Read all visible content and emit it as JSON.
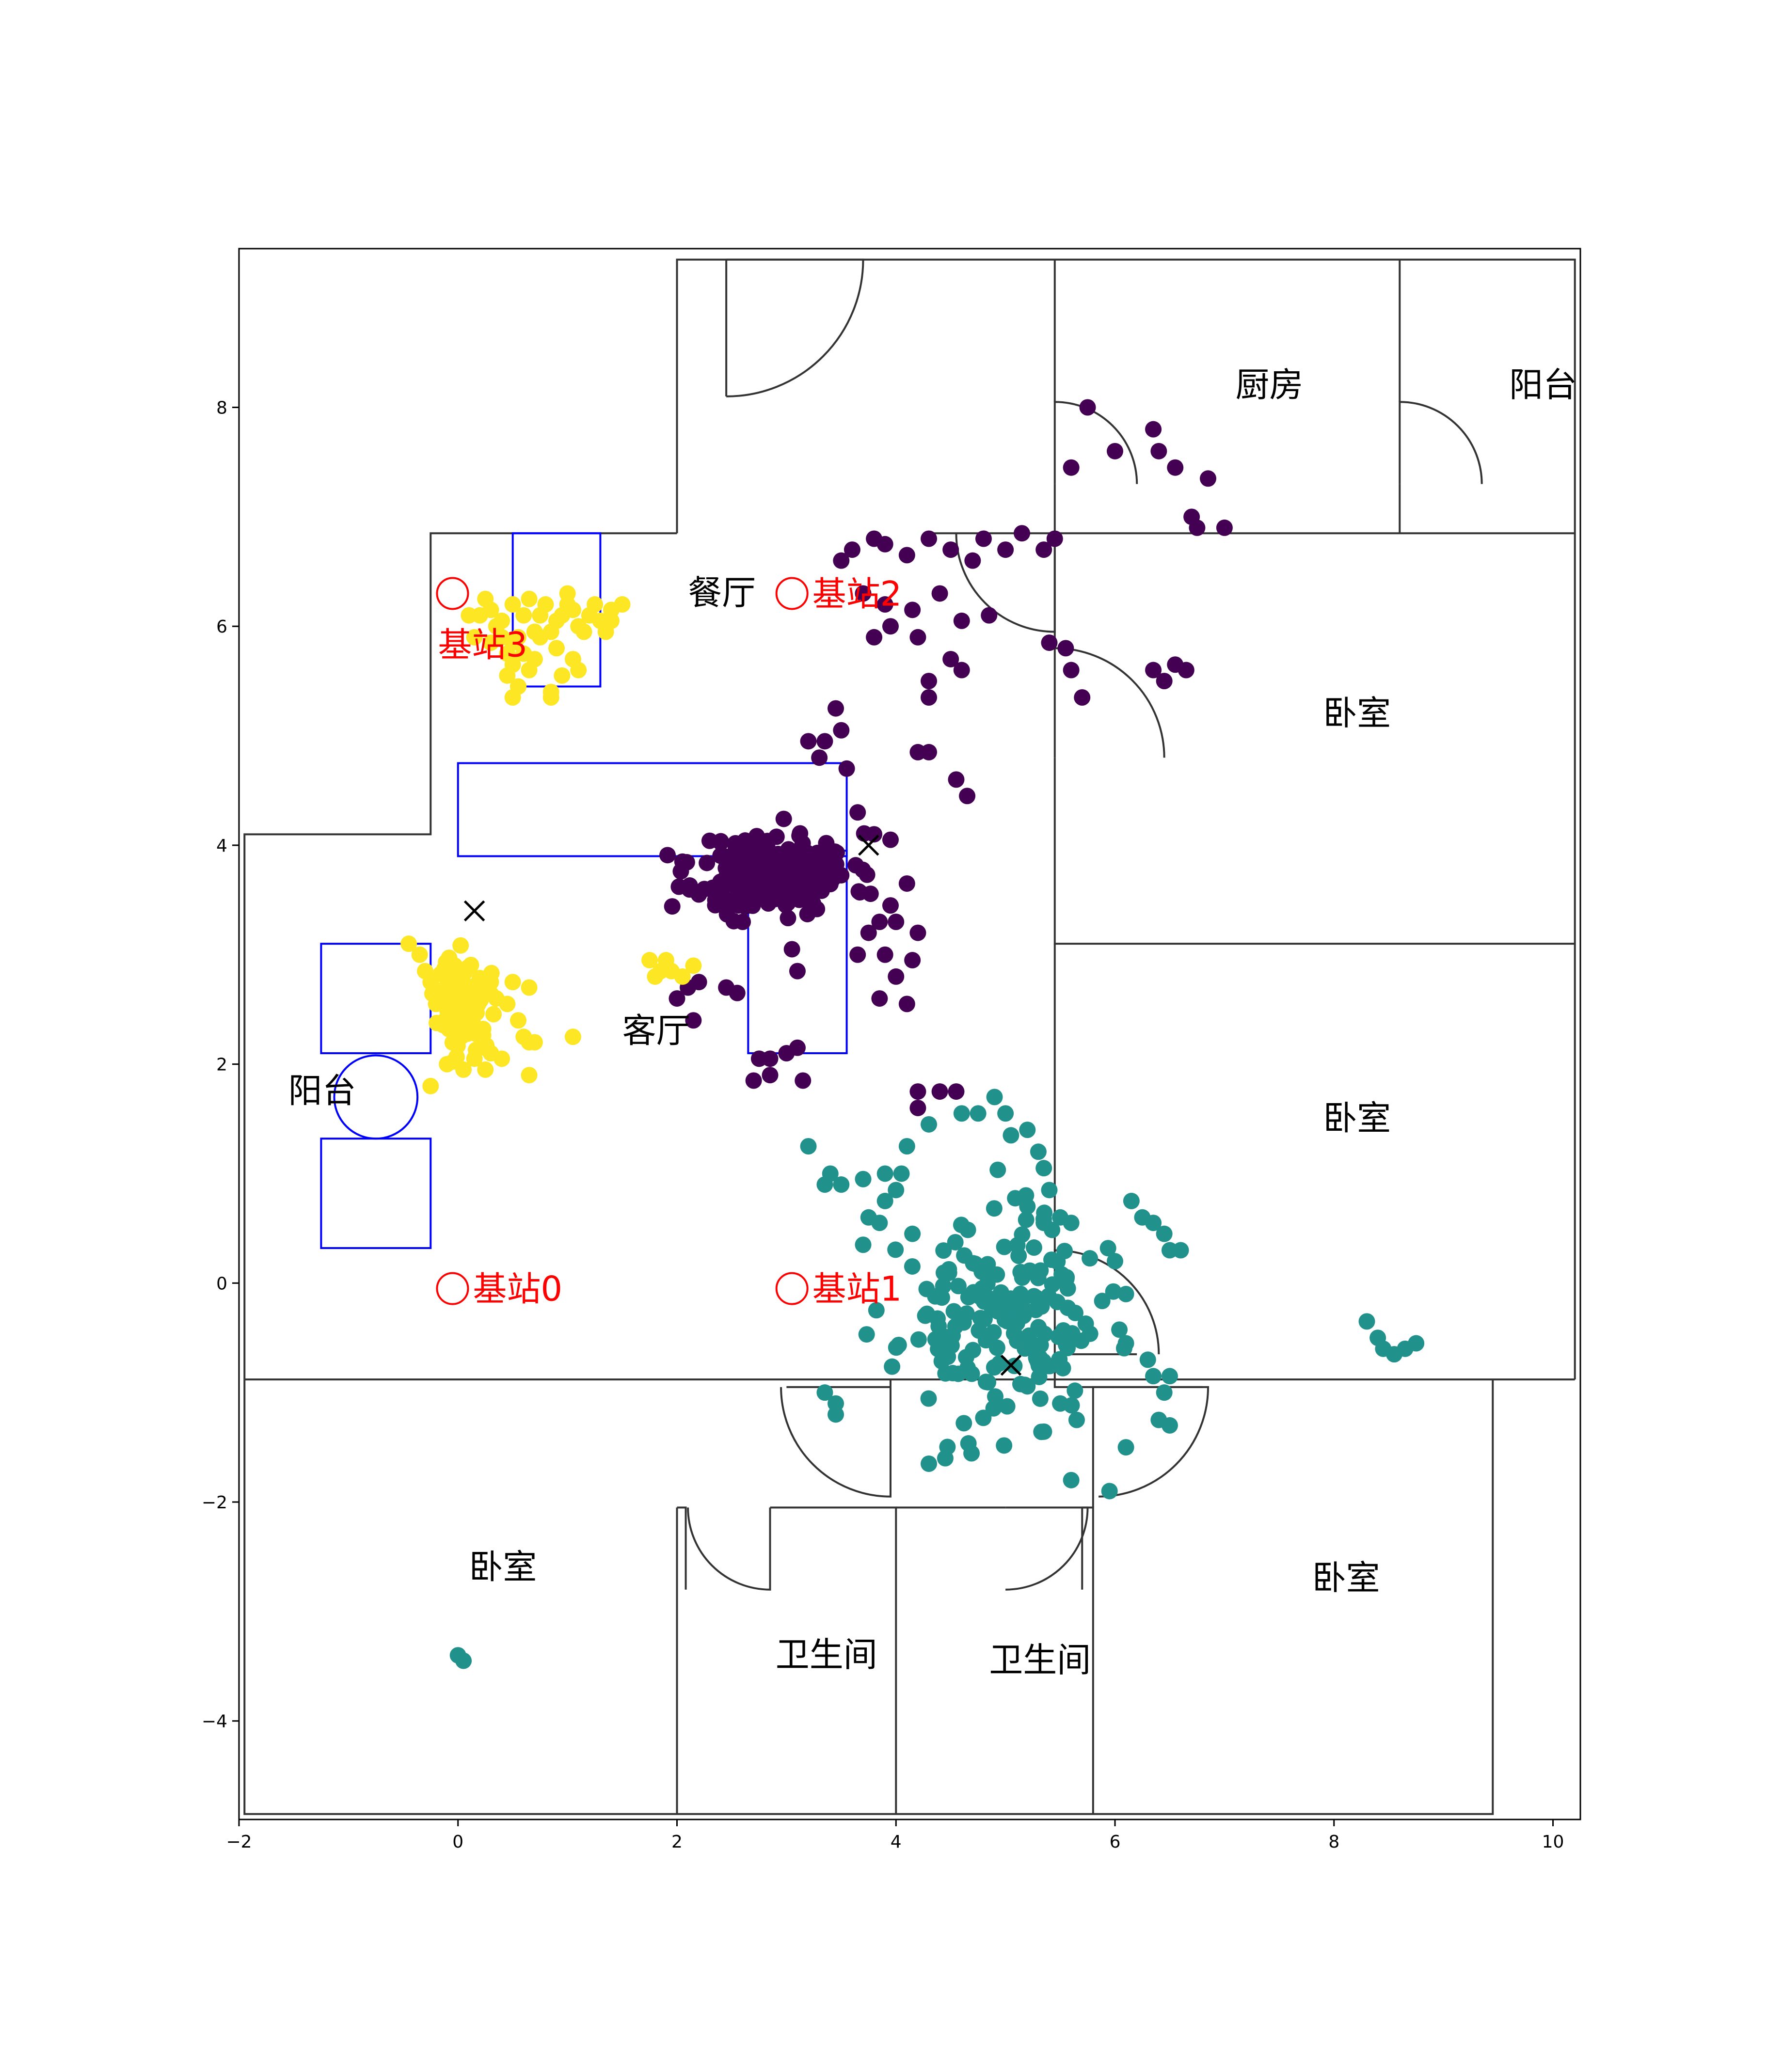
{
  "chart_data": {
    "type": "scatter",
    "title": "",
    "xlabel": "",
    "ylabel": "",
    "xlim": [
      -2,
      10.25
    ],
    "ylim": [
      -4.9,
      9.45
    ],
    "xticks": [
      -2,
      0,
      2,
      4,
      6,
      8,
      10
    ],
    "yticks": [
      -4,
      -2,
      0,
      2,
      4,
      6,
      8
    ],
    "grid": false,
    "legend": "none",
    "colors": {
      "cluster_purple": "#440154",
      "cluster_teal": "#21918c",
      "cluster_yellow": "#fde725",
      "wall": "#333333",
      "furniture": "#0000ff",
      "station": "#ff0000",
      "centroid": "#000000"
    },
    "room_labels": [
      {
        "text": "厨房",
        "x": 7.1,
        "y": 8.1
      },
      {
        "text": "阳台",
        "x": 9.6,
        "y": 8.1
      },
      {
        "text": "餐厅",
        "x": 2.1,
        "y": 6.2
      },
      {
        "text": "卧室",
        "x": 7.9,
        "y": 5.1
      },
      {
        "text": "卧室",
        "x": 7.9,
        "y": 1.4
      },
      {
        "text": "阳台",
        "x": -1.55,
        "y": 1.65
      },
      {
        "text": "客厅",
        "x": 1.5,
        "y": 2.2
      },
      {
        "text": "卧室",
        "x": 0.1,
        "y": -2.7
      },
      {
        "text": "卫生间",
        "x": 2.9,
        "y": -3.5
      },
      {
        "text": "卫生间",
        "x": 4.85,
        "y": -3.55
      },
      {
        "text": "卧室",
        "x": 7.8,
        "y": -2.8
      }
    ],
    "stations": [
      {
        "label": "基站0",
        "x": -0.05,
        "y": -0.05
      },
      {
        "label": "基站1",
        "x": 3.05,
        "y": -0.05
      },
      {
        "label": "基站2",
        "x": 3.05,
        "y": 6.3
      },
      {
        "label": "基站3",
        "x": -0.05,
        "y": 6.3
      }
    ],
    "centroids": [
      {
        "x": 0.15,
        "y": 3.4
      },
      {
        "x": 3.75,
        "y": 4.0
      },
      {
        "x": 5.05,
        "y": -0.75
      }
    ],
    "clusters": [
      {
        "color": "#440154",
        "center": [
          2.9,
          3.75
        ],
        "spread": [
          0.35,
          0.18
        ],
        "count": 220,
        "fixed_points": [
          [
            5.75,
            8.0
          ],
          [
            6.0,
            7.6
          ],
          [
            5.6,
            7.45
          ],
          [
            6.35,
            7.8
          ],
          [
            6.4,
            7.6
          ],
          [
            6.55,
            7.45
          ],
          [
            6.85,
            7.35
          ],
          [
            6.7,
            7.0
          ],
          [
            6.75,
            6.9
          ],
          [
            7.0,
            6.9
          ],
          [
            3.5,
            6.6
          ],
          [
            3.6,
            6.7
          ],
          [
            3.8,
            6.8
          ],
          [
            3.9,
            6.75
          ],
          [
            4.1,
            6.65
          ],
          [
            4.3,
            6.8
          ],
          [
            4.5,
            6.7
          ],
          [
            4.7,
            6.6
          ],
          [
            4.8,
            6.8
          ],
          [
            5.0,
            6.7
          ],
          [
            5.15,
            6.85
          ],
          [
            5.35,
            6.7
          ],
          [
            5.45,
            6.8
          ],
          [
            3.7,
            6.3
          ],
          [
            3.9,
            6.2
          ],
          [
            4.15,
            6.15
          ],
          [
            4.4,
            6.3
          ],
          [
            4.6,
            6.05
          ],
          [
            4.85,
            6.1
          ],
          [
            3.95,
            6.0
          ],
          [
            3.8,
            5.9
          ],
          [
            4.2,
            5.9
          ],
          [
            4.5,
            5.7
          ],
          [
            4.3,
            5.5
          ],
          [
            4.6,
            5.6
          ],
          [
            4.3,
            5.35
          ],
          [
            5.6,
            5.6
          ],
          [
            5.55,
            5.8
          ],
          [
            5.4,
            5.85
          ],
          [
            5.7,
            5.35
          ],
          [
            6.35,
            5.6
          ],
          [
            6.45,
            5.5
          ],
          [
            6.55,
            5.65
          ],
          [
            6.65,
            5.6
          ],
          [
            3.45,
            5.25
          ],
          [
            3.5,
            5.05
          ],
          [
            3.35,
            4.95
          ],
          [
            3.2,
            4.95
          ],
          [
            3.3,
            4.8
          ],
          [
            3.55,
            4.7
          ],
          [
            4.2,
            4.85
          ],
          [
            4.3,
            4.85
          ],
          [
            4.55,
            4.6
          ],
          [
            4.65,
            4.45
          ],
          [
            3.8,
            4.1
          ],
          [
            3.95,
            4.05
          ],
          [
            3.65,
            4.3
          ],
          [
            4.1,
            3.65
          ],
          [
            3.95,
            3.45
          ],
          [
            4.0,
            3.3
          ],
          [
            3.85,
            3.3
          ],
          [
            4.2,
            3.2
          ],
          [
            3.75,
            3.2
          ],
          [
            3.9,
            3.0
          ],
          [
            3.65,
            3.0
          ],
          [
            4.15,
            2.95
          ],
          [
            4.0,
            2.8
          ],
          [
            3.85,
            2.6
          ],
          [
            4.1,
            2.55
          ],
          [
            3.05,
            3.05
          ],
          [
            3.1,
            2.85
          ],
          [
            2.2,
            2.75
          ],
          [
            2.0,
            2.6
          ],
          [
            2.1,
            2.7
          ],
          [
            2.15,
            2.4
          ],
          [
            2.55,
            2.65
          ],
          [
            2.45,
            2.7
          ],
          [
            2.25,
            3.6
          ],
          [
            2.35,
            3.5
          ],
          [
            2.05,
            3.85
          ],
          [
            2.6,
            3.3
          ],
          [
            3.1,
            2.15
          ],
          [
            3.0,
            2.1
          ],
          [
            2.85,
            2.05
          ],
          [
            2.75,
            2.05
          ],
          [
            2.85,
            1.9
          ],
          [
            2.7,
            1.85
          ],
          [
            3.15,
            1.85
          ],
          [
            4.2,
            1.75
          ],
          [
            4.4,
            1.75
          ],
          [
            4.55,
            1.75
          ],
          [
            4.2,
            1.6
          ]
        ],
        "seed": 11
      },
      {
        "color": "#21918c",
        "center": [
          4.95,
          -0.35
        ],
        "spread": [
          0.45,
          0.45
        ],
        "count": 180,
        "fixed_points": [
          [
            3.2,
            1.25
          ],
          [
            3.4,
            1.0
          ],
          [
            3.5,
            0.9
          ],
          [
            3.35,
            0.9
          ],
          [
            3.7,
            0.95
          ],
          [
            3.9,
            1.0
          ],
          [
            4.05,
            1.0
          ],
          [
            4.0,
            0.85
          ],
          [
            3.9,
            0.75
          ],
          [
            3.75,
            0.6
          ],
          [
            3.85,
            0.55
          ],
          [
            4.15,
            0.45
          ],
          [
            3.7,
            0.35
          ],
          [
            4.1,
            1.25
          ],
          [
            4.3,
            1.45
          ],
          [
            4.6,
            1.55
          ],
          [
            4.75,
            1.55
          ],
          [
            4.9,
            1.7
          ],
          [
            5.0,
            1.55
          ],
          [
            5.2,
            1.4
          ],
          [
            5.05,
            1.35
          ],
          [
            5.3,
            1.2
          ],
          [
            5.35,
            1.05
          ],
          [
            5.4,
            0.85
          ],
          [
            5.2,
            0.7
          ],
          [
            5.35,
            0.55
          ],
          [
            5.5,
            0.6
          ],
          [
            5.6,
            0.55
          ],
          [
            6.15,
            0.75
          ],
          [
            6.25,
            0.6
          ],
          [
            6.35,
            0.55
          ],
          [
            6.45,
            0.45
          ],
          [
            6.5,
            0.3
          ],
          [
            6.6,
            0.3
          ],
          [
            6.0,
            0.2
          ],
          [
            6.1,
            -0.1
          ],
          [
            6.1,
            -0.55
          ],
          [
            6.3,
            -0.7
          ],
          [
            6.35,
            -0.85
          ],
          [
            6.5,
            -0.85
          ],
          [
            6.45,
            -1.0
          ],
          [
            6.4,
            -1.25
          ],
          [
            6.5,
            -1.3
          ],
          [
            6.1,
            -1.5
          ],
          [
            5.95,
            -1.9
          ],
          [
            5.6,
            -1.8
          ],
          [
            5.65,
            -1.25
          ],
          [
            5.5,
            -1.1
          ],
          [
            8.3,
            -0.35
          ],
          [
            8.4,
            -0.5
          ],
          [
            8.45,
            -0.6
          ],
          [
            8.55,
            -0.65
          ],
          [
            8.65,
            -0.6
          ],
          [
            8.75,
            -0.55
          ],
          [
            3.35,
            -1.0
          ],
          [
            3.45,
            -1.1
          ],
          [
            3.45,
            -1.2
          ],
          [
            4.3,
            -1.65
          ],
          [
            4.45,
            -1.6
          ],
          [
            0.0,
            -3.4
          ],
          [
            0.05,
            -3.45
          ]
        ],
        "seed": 23
      },
      {
        "color": "#fde725",
        "center": [
          0.05,
          2.55
        ],
        "spread": [
          0.12,
          0.22
        ],
        "count": 90,
        "fixed_points": [
          [
            0.2,
            6.1
          ],
          [
            0.3,
            6.15
          ],
          [
            0.4,
            6.05
          ],
          [
            0.5,
            6.2
          ],
          [
            0.6,
            6.1
          ],
          [
            0.7,
            5.95
          ],
          [
            0.8,
            6.2
          ],
          [
            0.9,
            6.05
          ],
          [
            1.0,
            6.2
          ],
          [
            1.1,
            6.0
          ],
          [
            1.2,
            6.1
          ],
          [
            1.3,
            6.05
          ],
          [
            1.4,
            6.15
          ],
          [
            0.5,
            5.85
          ],
          [
            0.45,
            5.75
          ],
          [
            0.6,
            5.75
          ],
          [
            0.7,
            5.7
          ],
          [
            0.55,
            5.9
          ],
          [
            0.35,
            6.0
          ],
          [
            0.25,
            6.25
          ],
          [
            0.65,
            6.25
          ],
          [
            0.75,
            6.1
          ],
          [
            0.85,
            5.95
          ],
          [
            0.95,
            6.1
          ],
          [
            1.05,
            6.15
          ],
          [
            1.15,
            5.95
          ],
          [
            1.25,
            6.2
          ],
          [
            0.15,
            5.9
          ],
          [
            0.1,
            6.1
          ],
          [
            1.35,
            5.95
          ],
          [
            0.9,
            5.8
          ],
          [
            1.05,
            5.7
          ],
          [
            1.1,
            5.6
          ],
          [
            0.95,
            5.55
          ],
          [
            0.45,
            5.55
          ],
          [
            0.55,
            5.45
          ],
          [
            0.5,
            5.35
          ],
          [
            0.85,
            5.4
          ],
          [
            0.65,
            5.6
          ],
          [
            0.4,
            5.9
          ],
          [
            1.4,
            6.05
          ],
          [
            1.0,
            6.3
          ],
          [
            0.3,
            5.85
          ],
          [
            1.5,
            6.2
          ],
          [
            0.75,
            5.9
          ],
          [
            -0.45,
            3.1
          ],
          [
            -0.35,
            3.0
          ],
          [
            -0.3,
            2.85
          ],
          [
            -0.25,
            2.75
          ],
          [
            -0.2,
            2.55
          ],
          [
            0.3,
            2.75
          ],
          [
            0.35,
            2.6
          ],
          [
            0.45,
            2.55
          ],
          [
            0.5,
            2.75
          ],
          [
            0.65,
            2.7
          ],
          [
            0.55,
            2.4
          ],
          [
            0.6,
            2.25
          ],
          [
            0.65,
            2.2
          ],
          [
            0.7,
            2.2
          ],
          [
            0.4,
            2.05
          ],
          [
            0.3,
            2.1
          ],
          [
            0.25,
            1.95
          ],
          [
            0.2,
            2.15
          ],
          [
            0.05,
            1.95
          ],
          [
            -0.1,
            2.0
          ],
          [
            -0.25,
            1.8
          ],
          [
            0.15,
            2.05
          ],
          [
            0.65,
            1.9
          ],
          [
            1.05,
            2.25
          ],
          [
            1.75,
            2.95
          ],
          [
            1.85,
            2.85
          ],
          [
            1.95,
            2.85
          ],
          [
            2.05,
            2.8
          ],
          [
            2.15,
            2.9
          ],
          [
            1.8,
            2.8
          ],
          [
            1.9,
            2.95
          ],
          [
            0.55,
            5.45
          ],
          [
            0.5,
            5.65
          ],
          [
            0.85,
            5.35
          ]
        ],
        "seed": 37
      }
    ]
  }
}
